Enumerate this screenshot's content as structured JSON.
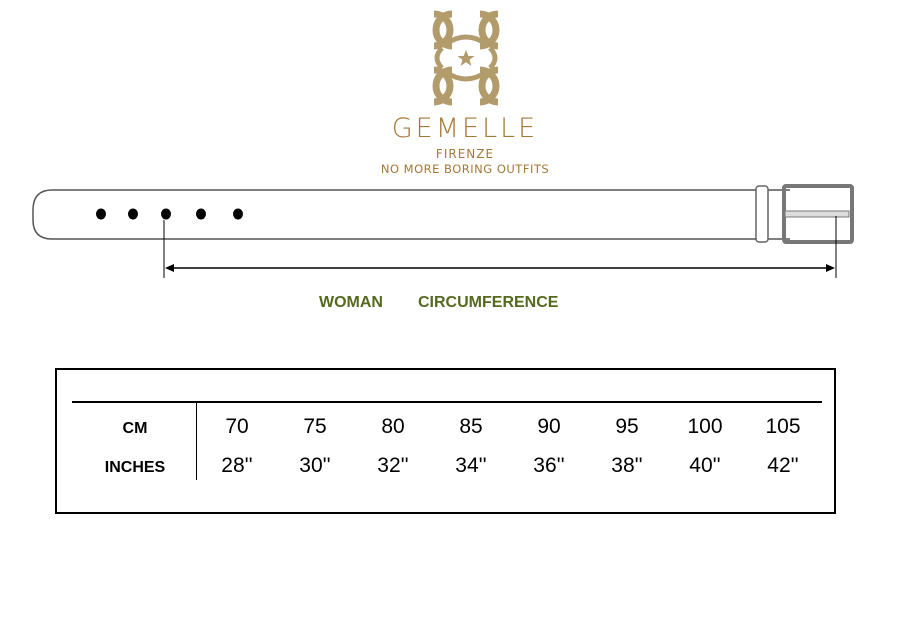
{
  "brand": {
    "name": "GEMELLE",
    "city": "FIRENZE",
    "tagline": "NO MORE BORING OUTFITS",
    "logo_color": "#b39c6c",
    "text_color": "#a47838"
  },
  "diagram": {
    "gender_label": "WOMAN",
    "measure_label": "CIRCUMFERENCE",
    "label_color": "#55691f",
    "belt_holes": 5
  },
  "size_table": {
    "rows": [
      {
        "label": "CM",
        "values": [
          "70",
          "75",
          "80",
          "85",
          "90",
          "95",
          "100",
          "105"
        ]
      },
      {
        "label": "INCHES",
        "values": [
          "28''",
          "30''",
          "32''",
          "34''",
          "36''",
          "38''",
          "40''",
          "42''"
        ]
      }
    ]
  }
}
